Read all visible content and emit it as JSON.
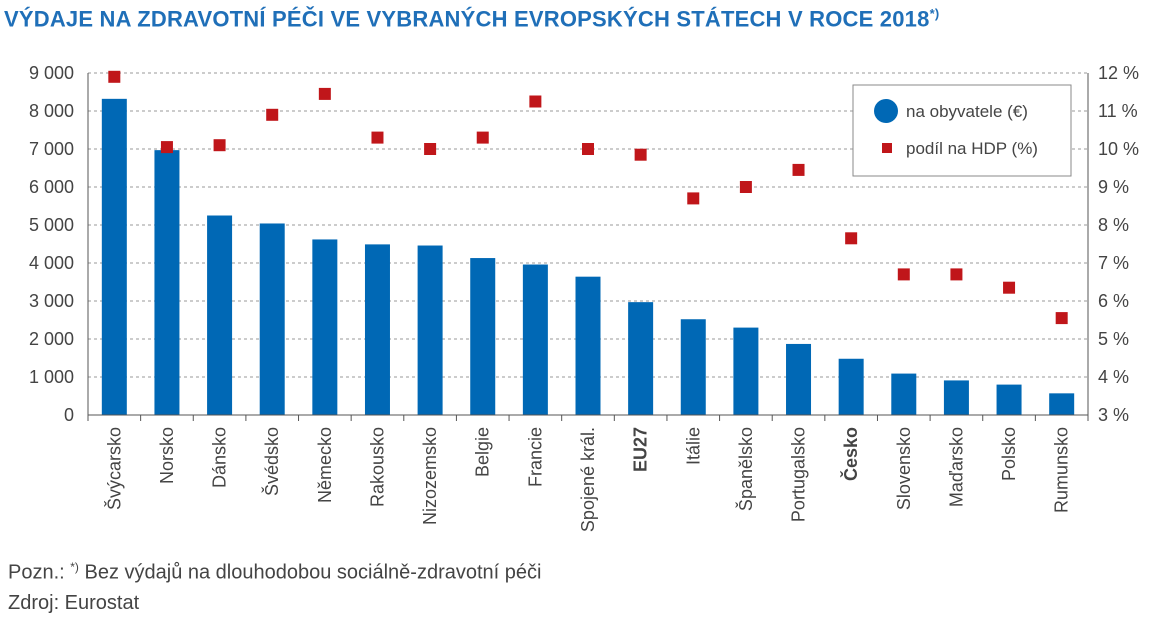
{
  "title_main": "VÝDAJE NA ZDRAVOTNÍ PÉČI VE VYBRANÝCH EVROPSKÝCH STÁTECH V ROCE 2018",
  "title_sup": "*)",
  "note_prefix": "Pozn.: ",
  "note_sup": "*)",
  "note_text": " Bez výdajů na dlouhodobou sociálně-zdravotní péči",
  "source": "Zdroj: Eurostat",
  "colors": {
    "bar": "#0068b5",
    "marker": "#c0161a",
    "title": "#1f6fb8"
  },
  "chart_data": {
    "type": "bar",
    "categories": [
      "Švýcarsko",
      "Norsko",
      "Dánsko",
      "Švédsko",
      "Německo",
      "Rakousko",
      "Nizozemsko",
      "Belgie",
      "Francie",
      "Spojené král.",
      "EU27",
      "Itálie",
      "Španělsko",
      "Portugalsko",
      "Česko",
      "Slovensko",
      "Maďarsko",
      "Polsko",
      "Rumunsko"
    ],
    "bold_categories": [
      "EU27",
      "Česko"
    ],
    "series": [
      {
        "name": "na obyvatele (€)",
        "type": "bar",
        "axis": "left",
        "values": [
          8320,
          6970,
          5250,
          5040,
          4620,
          4490,
          4460,
          4130,
          3960,
          3640,
          2970,
          2520,
          2300,
          1870,
          1480,
          1090,
          910,
          800,
          570
        ]
      },
      {
        "name": "podíl na HDP (%)",
        "type": "scatter",
        "axis": "right",
        "values": [
          11.9,
          10.05,
          10.1,
          10.9,
          11.45,
          10.3,
          10.0,
          10.3,
          11.25,
          10.0,
          9.85,
          8.7,
          9.0,
          9.45,
          7.65,
          6.7,
          6.7,
          6.35,
          5.55
        ]
      }
    ],
    "y_left": {
      "ylim": [
        0,
        9000
      ],
      "ticks": [
        0,
        1000,
        2000,
        3000,
        4000,
        5000,
        6000,
        7000,
        8000,
        9000
      ],
      "tick_labels": [
        "0",
        "1 000",
        "2 000",
        "3 000",
        "4 000",
        "5 000",
        "6 000",
        "7 000",
        "8 000",
        "9 000"
      ]
    },
    "y_right": {
      "ylim": [
        3,
        12
      ],
      "ticks": [
        3,
        4,
        5,
        6,
        7,
        8,
        9,
        10,
        11,
        12
      ],
      "tick_labels": [
        "3 %",
        "4 %",
        "5 %",
        "6 %",
        "7 %",
        "8 %",
        "9 %",
        "10 %",
        "11 %",
        "12 %"
      ]
    },
    "grid": true,
    "legend_position": "top-right"
  }
}
